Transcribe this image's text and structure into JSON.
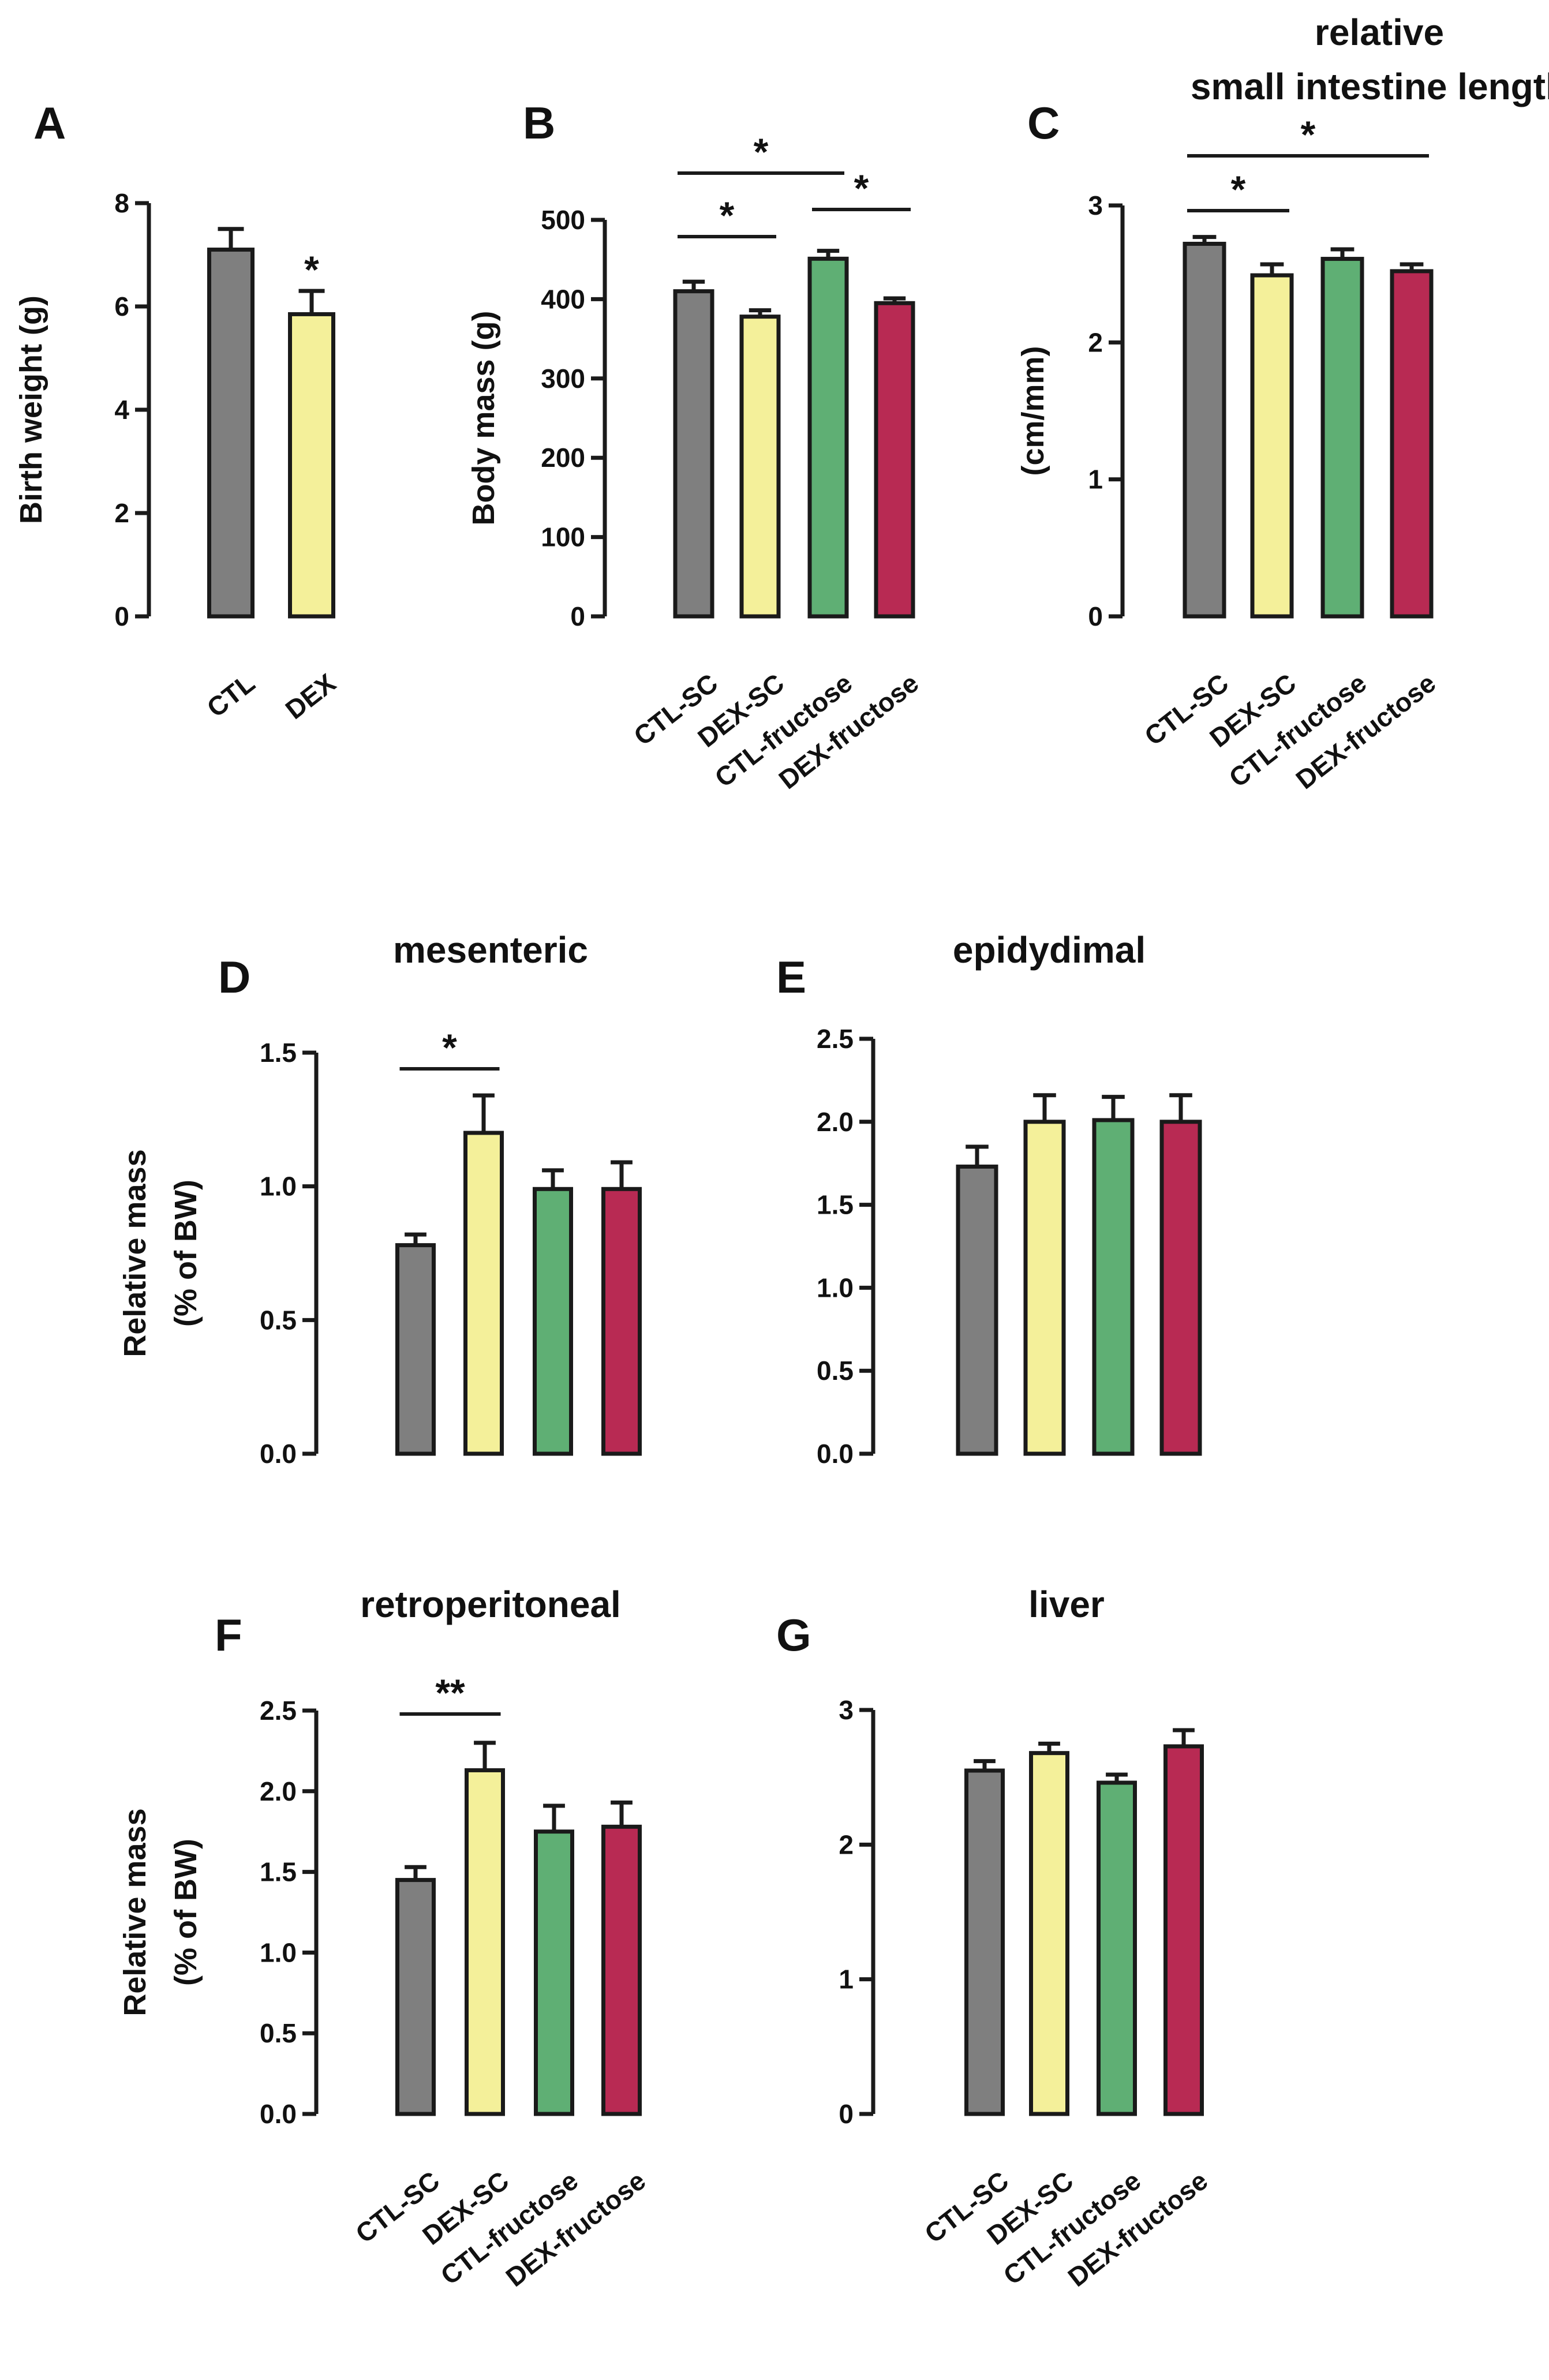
{
  "colors": {
    "CTL": "#7f7f7f",
    "DEX": "#f4f09a",
    "CTL-fructose": "#5faf74",
    "DEX-fructose": "#b82a53",
    "axis": "#1a1a1a"
  },
  "chart_data": [
    {
      "id": "A",
      "type": "bar",
      "letter": "A",
      "title": "",
      "ylabel": "Birth weight (g)",
      "categories": [
        "CTL",
        "DEX"
      ],
      "values": [
        7.1,
        5.85
      ],
      "errors": [
        0.4,
        0.45
      ],
      "colors": [
        "#7f7f7f",
        "#f4f09a"
      ],
      "ylim": [
        0,
        8
      ],
      "ticks": [
        0,
        2,
        4,
        6,
        8
      ],
      "tick_labels": [
        "0",
        "2",
        "4",
        "6",
        "8"
      ],
      "significance": [
        {
          "bars": [
            1
          ],
          "label": "*"
        }
      ]
    },
    {
      "id": "B",
      "type": "bar",
      "letter": "B",
      "title": "",
      "ylabel": "Body mass (g)",
      "categories": [
        "CTL-SC",
        "DEX-SC",
        "CTL-fructose",
        "DEX-fructose"
      ],
      "values": [
        410,
        378,
        451,
        395
      ],
      "errors": [
        12,
        8,
        10,
        6
      ],
      "colors": [
        "#7f7f7f",
        "#f4f09a",
        "#5faf74",
        "#b82a53"
      ],
      "ylim": [
        0,
        500
      ],
      "ticks": [
        0,
        100,
        200,
        300,
        400,
        500
      ],
      "tick_labels": [
        "0",
        "100",
        "200",
        "300",
        "400",
        "500"
      ],
      "significance": [
        {
          "bars": [
            0,
            1
          ],
          "label": "*"
        },
        {
          "bars": [
            2,
            3
          ],
          "label": "*"
        },
        {
          "bars": [
            0,
            2
          ],
          "label": "*"
        }
      ]
    },
    {
      "id": "C",
      "type": "bar",
      "letter": "C",
      "title": "relative small intestine length",
      "title_lines": [
        "relative",
        "small intestine length"
      ],
      "ylabel": "(cm/mm)",
      "categories": [
        "CTL-SC",
        "DEX-SC",
        "CTL-fructose",
        "DEX-fructose"
      ],
      "values": [
        2.72,
        2.49,
        2.61,
        2.52
      ],
      "errors": [
        0.05,
        0.08,
        0.07,
        0.05
      ],
      "colors": [
        "#7f7f7f",
        "#f4f09a",
        "#5faf74",
        "#b82a53"
      ],
      "ylim": [
        0,
        3
      ],
      "ticks": [
        0,
        1,
        2,
        3
      ],
      "tick_labels": [
        "0",
        "1",
        "2",
        "3"
      ],
      "significance": [
        {
          "bars": [
            0,
            1
          ],
          "label": "*"
        },
        {
          "bars": [
            0,
            3
          ],
          "label": "*"
        }
      ]
    },
    {
      "id": "D",
      "type": "bar",
      "letter": "D",
      "title": "mesenteric",
      "ylabel_lines": [
        "Relative mass",
        "(% of BW)"
      ],
      "categories": [
        "CTL-SC",
        "DEX-SC",
        "CTL-fructose",
        "DEX-fructose"
      ],
      "values": [
        0.78,
        1.2,
        0.99,
        0.99
      ],
      "errors": [
        0.04,
        0.14,
        0.07,
        0.1
      ],
      "colors": [
        "#7f7f7f",
        "#f4f09a",
        "#5faf74",
        "#b82a53"
      ],
      "ylim": [
        0,
        1.5
      ],
      "ticks": [
        0,
        0.5,
        1.0,
        1.5
      ],
      "tick_labels": [
        "0.0",
        "0.5",
        "1.0",
        "1.5"
      ],
      "significance": [
        {
          "bars": [
            0,
            1
          ],
          "label": "*"
        }
      ]
    },
    {
      "id": "E",
      "type": "bar",
      "letter": "E",
      "title": "epidydimal",
      "ylabel": "",
      "categories": [
        "CTL-SC",
        "DEX-SC",
        "CTL-fructose",
        "DEX-fructose"
      ],
      "values": [
        1.73,
        2.0,
        2.01,
        2.0
      ],
      "errors": [
        0.12,
        0.16,
        0.14,
        0.16
      ],
      "colors": [
        "#7f7f7f",
        "#f4f09a",
        "#5faf74",
        "#b82a53"
      ],
      "ylim": [
        0,
        2.5
      ],
      "ticks": [
        0,
        0.5,
        1.0,
        1.5,
        2.0,
        2.5
      ],
      "tick_labels": [
        "0.0",
        "0.5",
        "1.0",
        "1.5",
        "2.0",
        "2.5"
      ],
      "significance": []
    },
    {
      "id": "F",
      "type": "bar",
      "letter": "F",
      "title": "retroperitoneal",
      "ylabel_lines": [
        "Relative mass",
        "(% of BW)"
      ],
      "categories": [
        "CTL-SC",
        "DEX-SC",
        "CTL-fructose",
        "DEX-fructose"
      ],
      "values": [
        1.45,
        2.13,
        1.75,
        1.78
      ],
      "errors": [
        0.08,
        0.17,
        0.16,
        0.15
      ],
      "colors": [
        "#7f7f7f",
        "#f4f09a",
        "#5faf74",
        "#b82a53"
      ],
      "ylim": [
        0,
        2.5
      ],
      "ticks": [
        0,
        0.5,
        1.0,
        1.5,
        2.0,
        2.5
      ],
      "tick_labels": [
        "0.0",
        "0.5",
        "1.0",
        "1.5",
        "2.0",
        "2.5"
      ],
      "significance": [
        {
          "bars": [
            0,
            1
          ],
          "label": "**"
        }
      ]
    },
    {
      "id": "G",
      "type": "bar",
      "letter": "G",
      "title": "liver",
      "ylabel": "",
      "categories": [
        "CTL-SC",
        "DEX-SC",
        "CTL-fructose",
        "DEX-fructose"
      ],
      "values": [
        2.55,
        2.68,
        2.46,
        2.73
      ],
      "errors": [
        0.07,
        0.07,
        0.06,
        0.12
      ],
      "colors": [
        "#7f7f7f",
        "#f4f09a",
        "#5faf74",
        "#b82a53"
      ],
      "ylim": [
        0,
        3
      ],
      "ticks": [
        0,
        1,
        2,
        3
      ],
      "tick_labels": [
        "0",
        "1",
        "2",
        "3"
      ],
      "significance": []
    }
  ]
}
